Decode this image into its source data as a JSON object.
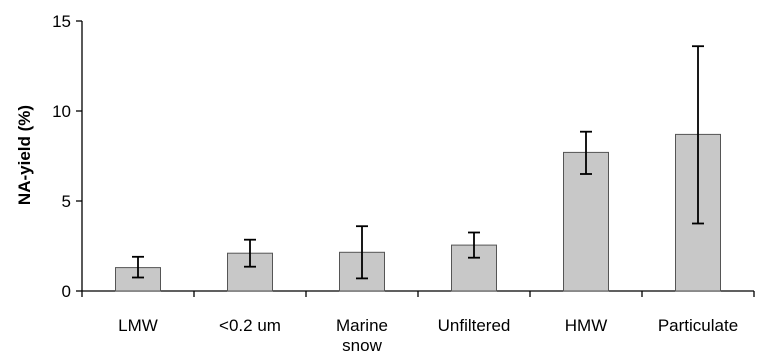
{
  "chart_data": {
    "type": "bar",
    "title": "",
    "xlabel": "",
    "ylabel": "NA-yield (%)",
    "ylim": [
      0,
      15
    ],
    "yticks": [
      0,
      5,
      10,
      15
    ],
    "grid": false,
    "legend": "none",
    "bar_color": "#c8c8c8",
    "bar_edge_color": "#555555",
    "categories": [
      [
        "LMW"
      ],
      [
        "<0.2 um"
      ],
      [
        "Marine",
        "snow"
      ],
      [
        "Unfiltered"
      ],
      [
        "HMW"
      ],
      [
        "Particulate"
      ]
    ],
    "values": [
      1.3,
      2.1,
      2.15,
      2.55,
      7.7,
      8.7
    ],
    "error_low": [
      0.75,
      1.35,
      0.7,
      1.85,
      6.5,
      3.75
    ],
    "error_high": [
      1.9,
      2.85,
      3.6,
      3.25,
      8.85,
      13.6
    ]
  }
}
